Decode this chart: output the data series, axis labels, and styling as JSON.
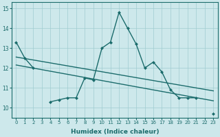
{
  "xlabel": "Humidex (Indice chaleur)",
  "x": [
    0,
    1,
    2,
    3,
    4,
    5,
    6,
    7,
    8,
    9,
    10,
    11,
    12,
    13,
    14,
    15,
    16,
    17,
    18,
    19,
    20,
    21,
    22,
    23
  ],
  "line1": [
    13.3,
    12.5,
    12.0,
    null,
    10.3,
    10.4,
    10.5,
    10.5,
    11.5,
    11.4,
    13.0,
    13.3,
    14.8,
    14.0,
    13.2,
    12.0,
    12.3,
    11.8,
    10.9,
    10.5,
    10.5,
    10.5,
    null,
    9.7
  ],
  "line2_x": [
    0,
    23
  ],
  "line2_y": [
    12.55,
    10.85
  ],
  "line3_x": [
    0,
    23
  ],
  "line3_y": [
    12.15,
    10.35
  ],
  "ylim": [
    9.5,
    15.3
  ],
  "xlim": [
    -0.5,
    23.5
  ],
  "yticks": [
    10,
    11,
    12,
    13,
    14,
    15
  ],
  "xticks": [
    0,
    1,
    2,
    3,
    4,
    5,
    6,
    7,
    8,
    9,
    10,
    11,
    12,
    13,
    14,
    15,
    16,
    17,
    18,
    19,
    20,
    21,
    22,
    23
  ],
  "bg_color": "#cde8eb",
  "grid_color": "#a0ccd0",
  "line_color": "#1a6b6b",
  "line_width": 1.0,
  "marker": "D",
  "marker_size": 2.5
}
